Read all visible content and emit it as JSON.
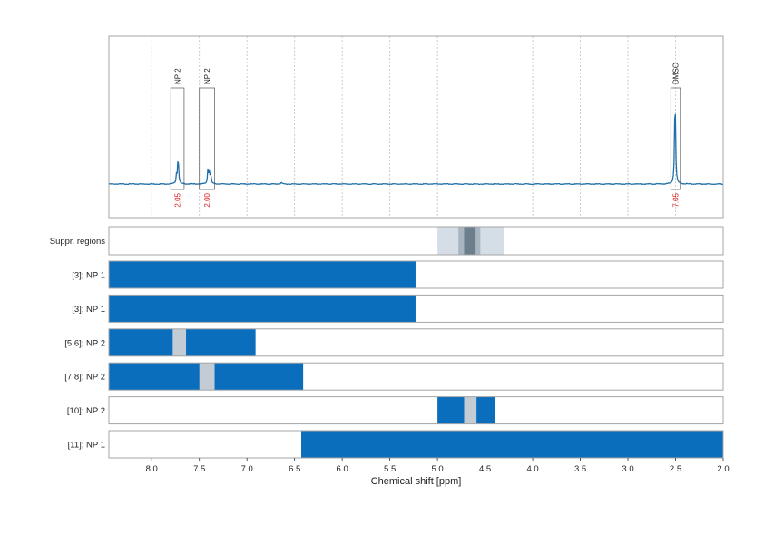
{
  "chart_data": {
    "type": "line",
    "xlabel": "Chemical shift [ppm]",
    "xlim": [
      8.45,
      2.0
    ],
    "x_ticks": [
      "8.0",
      "7.5",
      "7.0",
      "6.5",
      "6.0",
      "5.5",
      "5.0",
      "4.5",
      "4.0",
      "3.5",
      "3.0",
      "2.5",
      "2.0"
    ],
    "x_tick_values": [
      8.0,
      7.5,
      7.0,
      6.5,
      6.0,
      5.5,
      5.0,
      4.5,
      4.0,
      3.5,
      3.0,
      2.5,
      2.0
    ],
    "grid": true,
    "spectrum": {
      "baseline": 0,
      "color": "#1f6fa8",
      "peaks": [
        {
          "center": 7.725,
          "height": 0.17
        },
        {
          "center": 7.72,
          "height": 0.13
        },
        {
          "center": 7.74,
          "height": 0.09
        },
        {
          "center": 7.41,
          "height": 0.15
        },
        {
          "center": 7.395,
          "height": 0.13
        },
        {
          "center": 7.38,
          "height": 0.09
        },
        {
          "center": 2.505,
          "height": 0.98
        },
        {
          "center": 6.64,
          "height": 0.02
        }
      ]
    },
    "integration_boxes": [
      {
        "label": "NP 2",
        "integral": "2.05",
        "from": 7.8,
        "to": 7.66
      },
      {
        "label": "NP 2",
        "integral": "2.00",
        "from": 7.5,
        "to": 7.34
      },
      {
        "label": "DMSO",
        "integral": "7.05",
        "from": 2.55,
        "to": 2.45
      }
    ],
    "suppression_row": {
      "label": "Suppr. regions",
      "regions": [
        {
          "from": 5.0,
          "to": 4.3,
          "shade": "light"
        },
        {
          "from": 4.78,
          "to": 4.55,
          "shade": "medium"
        },
        {
          "from": 4.72,
          "to": 4.6,
          "shade": "dark"
        }
      ]
    },
    "rows": [
      {
        "label": "[3]; NP 1",
        "segments": [
          {
            "from": 8.45,
            "to": 5.23
          }
        ],
        "gaps": []
      },
      {
        "label": "[3]; NP 1",
        "segments": [
          {
            "from": 8.45,
            "to": 5.23
          }
        ],
        "gaps": []
      },
      {
        "label": "[5,6]; NP 2",
        "segments": [
          {
            "from": 8.45,
            "to": 6.91
          }
        ],
        "gaps": [
          {
            "from": 7.78,
            "to": 7.64
          }
        ]
      },
      {
        "label": "[7,8]; NP 2",
        "segments": [
          {
            "from": 8.45,
            "to": 6.41
          }
        ],
        "gaps": [
          {
            "from": 7.5,
            "to": 7.34
          }
        ]
      },
      {
        "label": "[10]; NP 2",
        "segments": [
          {
            "from": 5.0,
            "to": 4.4
          }
        ],
        "gaps": [
          {
            "from": 4.72,
            "to": 4.59
          }
        ]
      },
      {
        "label": "[11]; NP 1",
        "segments": [
          {
            "from": 6.43,
            "to": 2.0
          }
        ],
        "gaps": []
      }
    ],
    "colors": {
      "bar": "#0a6ebd",
      "gap": "#c3ccd4",
      "suppr_light": "#d5dee6",
      "suppr_medium": "#a9b5c1",
      "suppr_dark": "#6d7e8d",
      "integral_text": "#e02020",
      "grid": "#bfbfbf",
      "frame": "#a6a6a6"
    }
  }
}
